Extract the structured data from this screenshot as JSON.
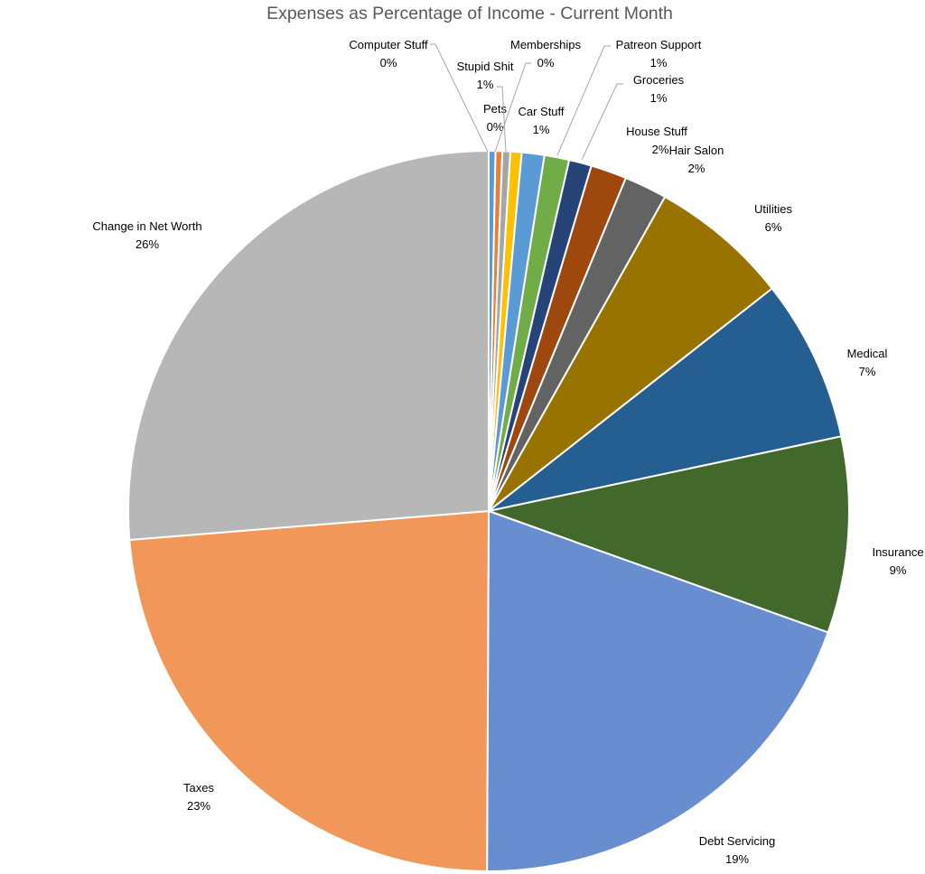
{
  "chart_data": {
    "type": "pie",
    "title": "Expenses as Percentage of Income - Current Month",
    "start_angle_deg": 0,
    "direction": "clockwise",
    "slices": [
      {
        "label": "Computer Stuff",
        "pct_label": "0%",
        "value": 0.3,
        "color": "#5b9bd5"
      },
      {
        "label": "Pets",
        "pct_label": "0%",
        "value": 0.3,
        "color": "#ed7d31"
      },
      {
        "label": "Memberships",
        "pct_label": "0%",
        "value": 0.35,
        "color": "#a5a5a5"
      },
      {
        "label": "Stupid Shit",
        "pct_label": "1%",
        "value": 0.5,
        "color": "#ffc000"
      },
      {
        "label": "Car Stuff",
        "pct_label": "1%",
        "value": 1.0,
        "color": "#5b9bd5"
      },
      {
        "label": "Patreon Support",
        "pct_label": "1%",
        "value": 1.1,
        "color": "#70ad47"
      },
      {
        "label": "Groceries",
        "pct_label": "1%",
        "value": 1.0,
        "color": "#264478"
      },
      {
        "label": "House Stuff",
        "pct_label": "2%",
        "value": 1.6,
        "color": "#9e480e"
      },
      {
        "label": "Hair Salon",
        "pct_label": "2%",
        "value": 1.9,
        "color": "#636363"
      },
      {
        "label": "Utilities",
        "pct_label": "6%",
        "value": 6.2,
        "color": "#997300"
      },
      {
        "label": "Medical",
        "pct_label": "7%",
        "value": 7.2,
        "color": "#255e91"
      },
      {
        "label": "Insurance",
        "pct_label": "9%",
        "value": 8.7,
        "color": "#43682b"
      },
      {
        "label": "Debt Servicing",
        "pct_label": "19%",
        "value": 19.4,
        "color": "#698ed0"
      },
      {
        "label": "Taxes",
        "pct_label": "23%",
        "value": 23.4,
        "color": "#f1975a"
      },
      {
        "label": "Change in Net Worth",
        "pct_label": "26%",
        "value": 26.0,
        "color": "#b7b7b7"
      }
    ],
    "legend": "none",
    "data_labels": "category name and percentage, with leader lines for small slices"
  }
}
